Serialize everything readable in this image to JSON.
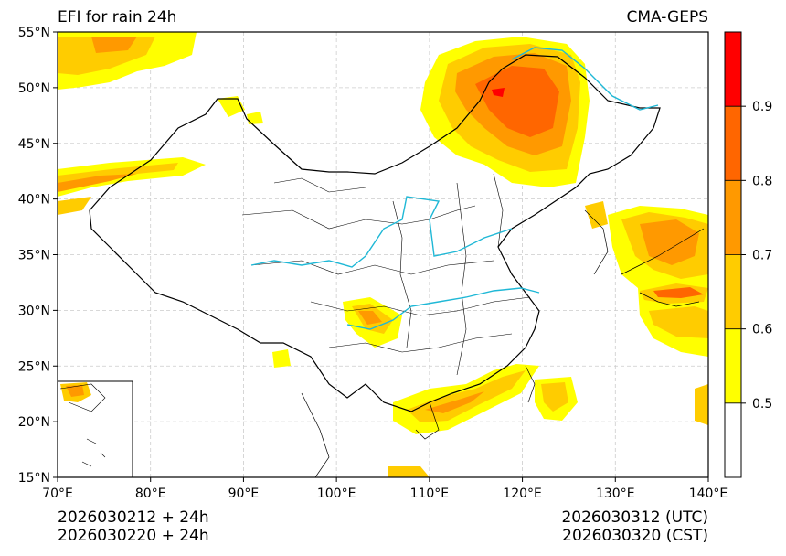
{
  "header": {
    "title": "EFI for rain 24h",
    "model": "CMA-GEPS"
  },
  "axes": {
    "lat_ticks": [
      "55°N",
      "50°N",
      "45°N",
      "40°N",
      "35°N",
      "30°N",
      "25°N",
      "20°N",
      "15°N"
    ],
    "lon_ticks": [
      "70°E",
      "80°E",
      "90°E",
      "100°E",
      "110°E",
      "120°E",
      "130°E",
      "140°E"
    ],
    "lat_range": [
      15,
      55
    ],
    "lon_range": [
      70,
      140
    ]
  },
  "colorbar": {
    "levels": [
      "0.5",
      "0.6",
      "0.7",
      "0.8",
      "0.9"
    ],
    "colors": [
      "#ffffff",
      "#ffff00",
      "#ffcc00",
      "#ff9900",
      "#ff6600",
      "#ff0000"
    ]
  },
  "footer": {
    "init_utc": "2026030212 + 24h",
    "init_cst": "2026030220 + 24h",
    "valid_utc": "2026030312 (UTC)",
    "valid_cst": "2026030320 (CST)"
  }
}
